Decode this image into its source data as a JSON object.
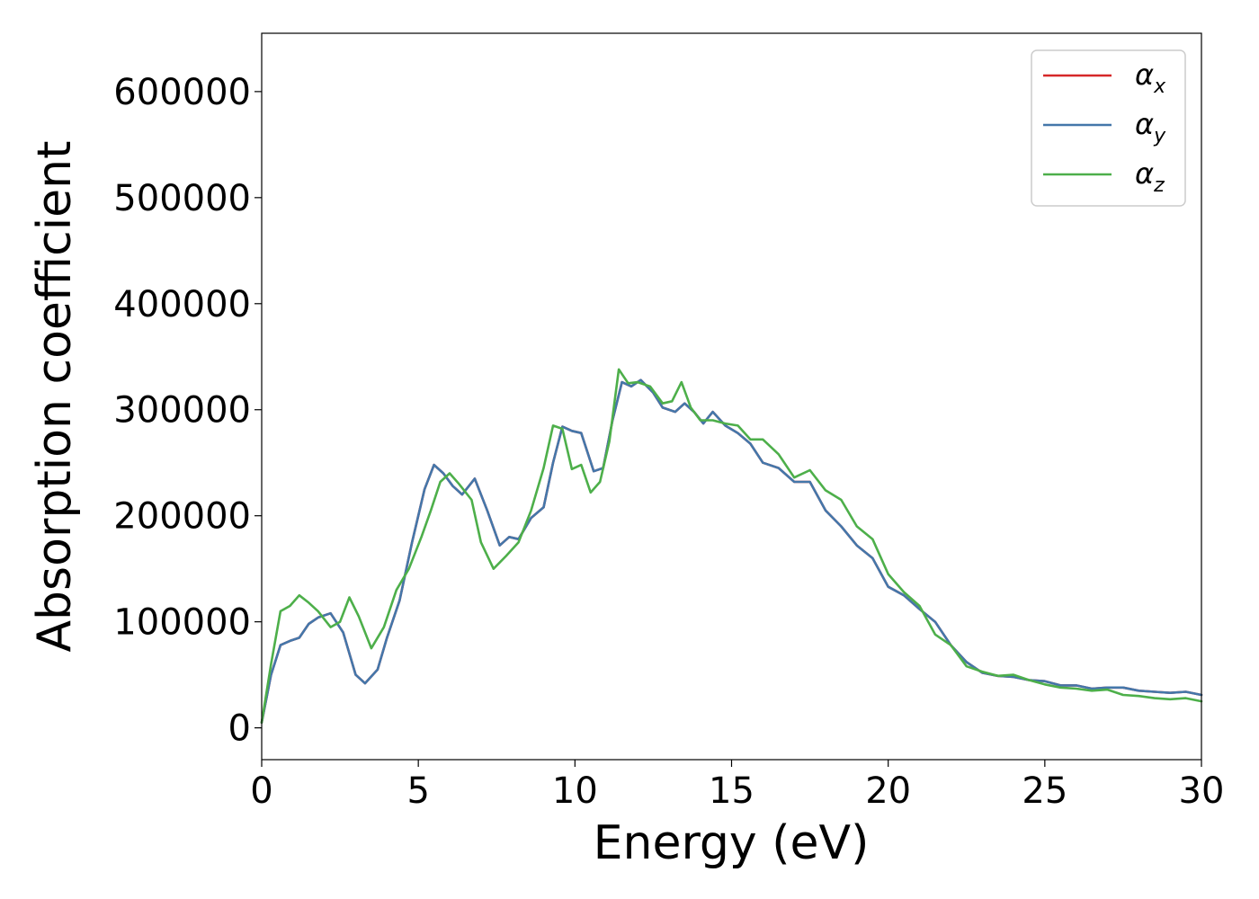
{
  "chart_data": {
    "type": "line",
    "title": "",
    "xlabel": "Energy (eV)",
    "ylabel": "Absorption coefficient",
    "xlim": [
      0,
      30
    ],
    "ylim": [
      -30000,
      655000
    ],
    "xticks": [
      0,
      5,
      10,
      15,
      20,
      25,
      30
    ],
    "yticks": [
      0,
      100000,
      200000,
      300000,
      400000,
      500000,
      600000
    ],
    "grid": false,
    "legend_position": "top-right",
    "series": [
      {
        "name": "α",
        "subscript": "x",
        "color": "#d62728",
        "x": [
          0,
          0.3,
          0.6,
          0.9,
          1.2,
          1.5,
          1.8,
          2.2,
          2.6,
          3.0,
          3.3,
          3.7,
          4.0,
          4.4,
          4.8,
          5.2,
          5.5,
          5.8,
          6.1,
          6.4,
          6.8,
          7.2,
          7.6,
          7.9,
          8.2,
          8.6,
          9.0,
          9.3,
          9.6,
          9.9,
          10.2,
          10.6,
          10.9,
          11.2,
          11.5,
          11.8,
          12.1,
          12.5,
          12.8,
          13.2,
          13.5,
          13.8,
          14.1,
          14.4,
          14.8,
          15.2,
          15.6,
          16.0,
          16.5,
          17.0,
          17.5,
          18.0,
          18.5,
          19.0,
          19.5,
          20.0,
          20.5,
          21.0,
          21.5,
          22.0,
          22.5,
          23.0,
          23.5,
          24.0,
          24.5,
          25.0,
          25.5,
          26.0,
          26.5,
          27.0,
          27.5,
          28.0,
          28.5,
          29.0,
          29.5,
          30.0
        ],
        "y": [
          5000,
          50000,
          78000,
          82000,
          85000,
          98000,
          104000,
          108000,
          90000,
          50000,
          42000,
          55000,
          85000,
          120000,
          175000,
          225000,
          248000,
          240000,
          228000,
          220000,
          235000,
          205000,
          172000,
          180000,
          178000,
          198000,
          208000,
          250000,
          284000,
          280000,
          278000,
          242000,
          245000,
          290000,
          326000,
          322000,
          328000,
          316000,
          302000,
          298000,
          306000,
          298000,
          287000,
          298000,
          285000,
          278000,
          268000,
          250000,
          245000,
          232000,
          232000,
          205000,
          190000,
          172000,
          160000,
          133000,
          125000,
          112000,
          100000,
          78000,
          62000,
          52000,
          49000,
          48000,
          45000,
          44000,
          40000,
          40000,
          37000,
          38000,
          38000,
          35000,
          34000,
          33000,
          34000,
          31000
        ]
      },
      {
        "name": "α",
        "subscript": "y",
        "color": "#4477aa",
        "x": [
          0,
          0.3,
          0.6,
          0.9,
          1.2,
          1.5,
          1.8,
          2.2,
          2.6,
          3.0,
          3.3,
          3.7,
          4.0,
          4.4,
          4.8,
          5.2,
          5.5,
          5.8,
          6.1,
          6.4,
          6.8,
          7.2,
          7.6,
          7.9,
          8.2,
          8.6,
          9.0,
          9.3,
          9.6,
          9.9,
          10.2,
          10.6,
          10.9,
          11.2,
          11.5,
          11.8,
          12.1,
          12.5,
          12.8,
          13.2,
          13.5,
          13.8,
          14.1,
          14.4,
          14.8,
          15.2,
          15.6,
          16.0,
          16.5,
          17.0,
          17.5,
          18.0,
          18.5,
          19.0,
          19.5,
          20.0,
          20.5,
          21.0,
          21.5,
          22.0,
          22.5,
          23.0,
          23.5,
          24.0,
          24.5,
          25.0,
          25.5,
          26.0,
          26.5,
          27.0,
          27.5,
          28.0,
          28.5,
          29.0,
          29.5,
          30.0
        ],
        "y": [
          5000,
          50000,
          78000,
          82000,
          85000,
          98000,
          104000,
          108000,
          90000,
          50000,
          42000,
          55000,
          85000,
          120000,
          175000,
          225000,
          248000,
          240000,
          228000,
          220000,
          235000,
          205000,
          172000,
          180000,
          178000,
          198000,
          208000,
          250000,
          284000,
          280000,
          278000,
          242000,
          245000,
          290000,
          326000,
          322000,
          328000,
          316000,
          302000,
          298000,
          306000,
          298000,
          287000,
          298000,
          285000,
          278000,
          268000,
          250000,
          245000,
          232000,
          232000,
          205000,
          190000,
          172000,
          160000,
          133000,
          125000,
          112000,
          100000,
          78000,
          62000,
          52000,
          49000,
          48000,
          45000,
          44000,
          40000,
          40000,
          37000,
          38000,
          38000,
          35000,
          34000,
          33000,
          34000,
          31000
        ]
      },
      {
        "name": "α",
        "subscript": "z",
        "color": "#4daf4a",
        "x": [
          0,
          0.3,
          0.6,
          0.9,
          1.2,
          1.5,
          1.8,
          2.2,
          2.5,
          2.8,
          3.1,
          3.5,
          3.9,
          4.3,
          4.7,
          5.1,
          5.4,
          5.7,
          6.0,
          6.3,
          6.7,
          7.0,
          7.4,
          7.8,
          8.2,
          8.6,
          9.0,
          9.3,
          9.6,
          9.9,
          10.2,
          10.5,
          10.8,
          11.1,
          11.4,
          11.7,
          12.0,
          12.4,
          12.8,
          13.1,
          13.4,
          13.7,
          14.0,
          14.4,
          14.8,
          15.2,
          15.6,
          16.0,
          16.5,
          17.0,
          17.5,
          18.0,
          18.5,
          19.0,
          19.5,
          20.0,
          20.5,
          21.0,
          21.5,
          22.0,
          22.5,
          23.0,
          23.5,
          24.0,
          24.5,
          25.0,
          25.5,
          26.0,
          26.5,
          27.0,
          27.5,
          28.0,
          28.5,
          29.0,
          29.5,
          30.0
        ],
        "y": [
          5000,
          60000,
          110000,
          115000,
          125000,
          118000,
          110000,
          95000,
          100000,
          123000,
          105000,
          75000,
          95000,
          130000,
          150000,
          180000,
          205000,
          232000,
          240000,
          230000,
          215000,
          175000,
          150000,
          162000,
          175000,
          205000,
          245000,
          285000,
          282000,
          244000,
          248000,
          222000,
          232000,
          270000,
          338000,
          325000,
          326000,
          322000,
          306000,
          308000,
          326000,
          302000,
          290000,
          290000,
          287000,
          285000,
          272000,
          272000,
          258000,
          236000,
          243000,
          224000,
          215000,
          190000,
          178000,
          145000,
          128000,
          115000,
          88000,
          78000,
          58000,
          53000,
          49000,
          50000,
          45000,
          41000,
          38000,
          37000,
          35000,
          36000,
          31000,
          30000,
          28000,
          27000,
          28000,
          25000
        ]
      }
    ]
  }
}
